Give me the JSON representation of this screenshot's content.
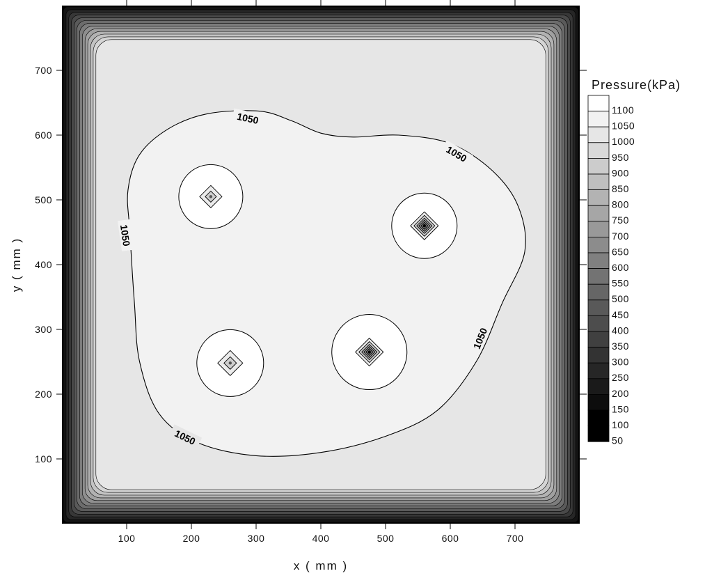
{
  "chart_data": {
    "type": "contour",
    "xlabel": "x ( mm )",
    "ylabel": "y ( mm )",
    "xlim": [
      0,
      800
    ],
    "ylim": [
      0,
      800
    ],
    "x_ticks": [
      100,
      200,
      300,
      400,
      500,
      600,
      700
    ],
    "y_ticks": [
      100,
      200,
      300,
      400,
      500,
      600,
      700
    ],
    "legend_title": "Pressure(kPa)",
    "legend_placement": "right",
    "levels": [
      1100,
      1050,
      1000,
      950,
      900,
      850,
      800,
      750,
      700,
      650,
      600,
      550,
      500,
      450,
      400,
      350,
      300,
      250,
      200,
      150,
      100,
      50
    ],
    "level_colors": [
      "#ffffff",
      "#f2f2f2",
      "#e6e6e6",
      "#d9d9d9",
      "#cccccc",
      "#bfbfbf",
      "#b3b3b3",
      "#a6a6a6",
      "#999999",
      "#8c8c8c",
      "#808080",
      "#737373",
      "#666666",
      "#595959",
      "#4d4d4d",
      "#404040",
      "#333333",
      "#262626",
      "#1a1a1a",
      "#0d0d0d",
      "#000000",
      "#000000"
    ],
    "contour_labels": [
      "1050",
      "1050",
      "1050",
      "1050",
      "1050"
    ],
    "pressure_points": [
      {
        "x": 230,
        "y": 505
      },
      {
        "x": 560,
        "y": 460
      },
      {
        "x": 260,
        "y": 248
      },
      {
        "x": 475,
        "y": 265
      }
    ]
  }
}
